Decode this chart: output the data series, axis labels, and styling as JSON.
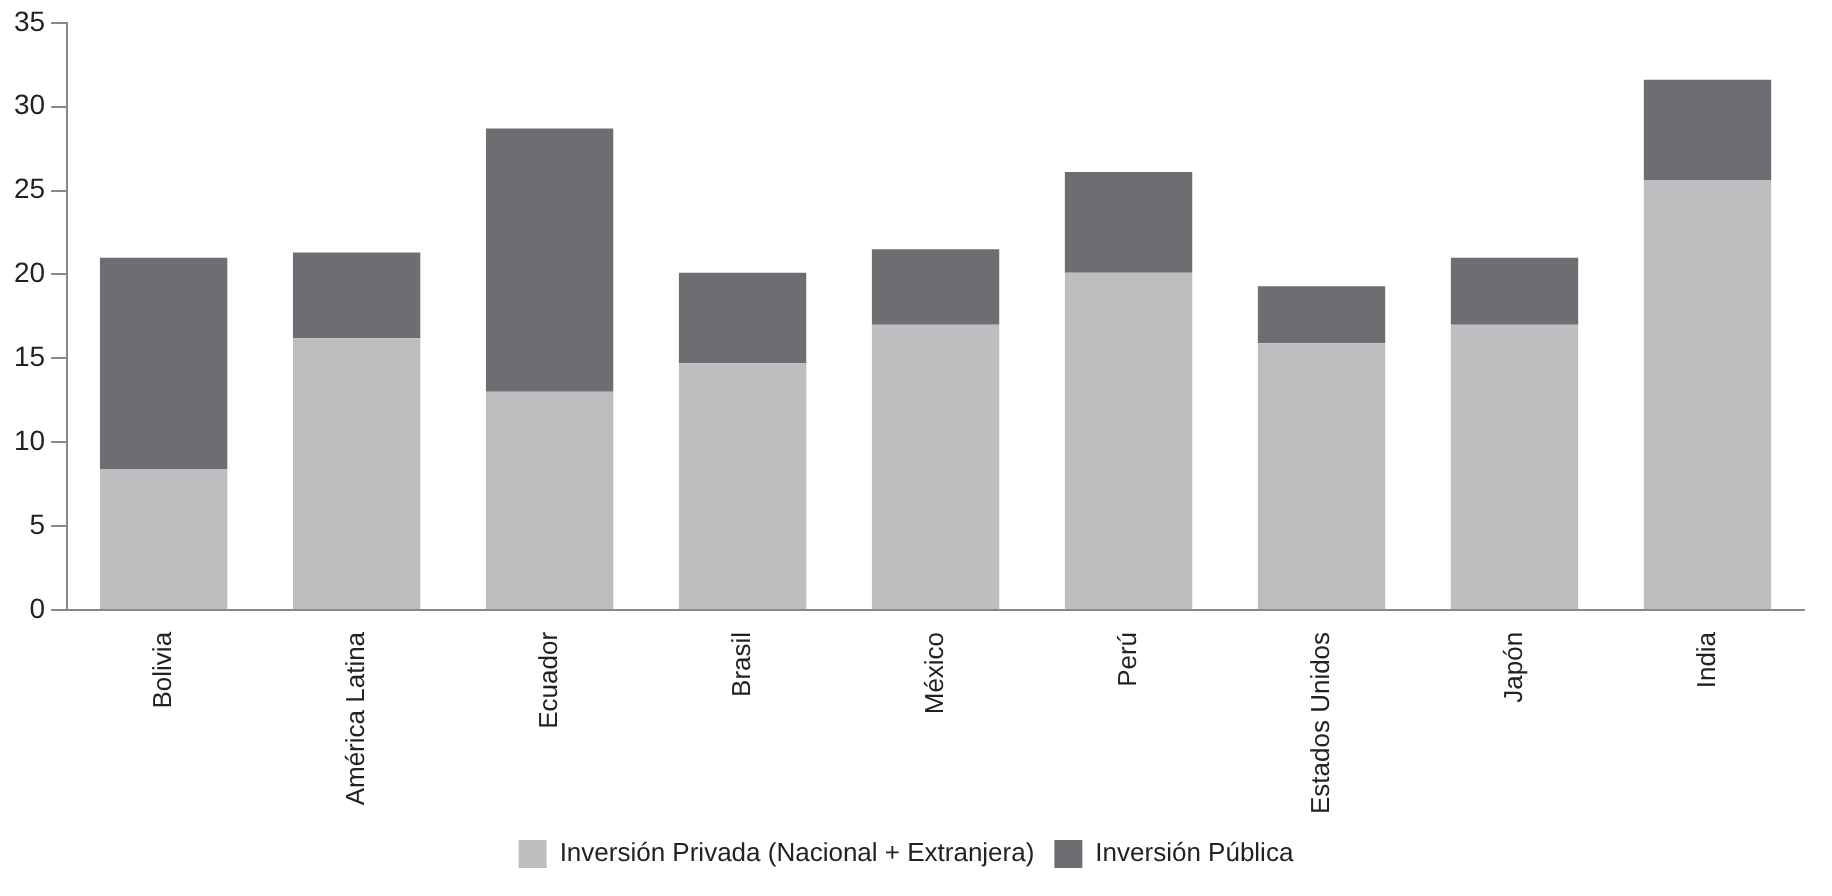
{
  "chart_data": {
    "type": "bar",
    "stacked": true,
    "categories": [
      "Bolivia",
      "América Latina",
      "Ecuador",
      "Brasil",
      "México",
      "Perú",
      "Estados Unidos",
      "Japón",
      "India"
    ],
    "series": [
      {
        "name": "Inversión Privada (Nacional + Extranjera)",
        "color": "#bdbec0",
        "values": [
          8.4,
          16.2,
          13.0,
          14.7,
          17.0,
          20.1,
          15.9,
          17.0,
          25.6
        ]
      },
      {
        "name": "Inversión Pública",
        "color": "#6d6e71",
        "values": [
          12.6,
          5.1,
          15.7,
          5.4,
          4.5,
          6.0,
          3.4,
          4.0,
          6.0
        ]
      }
    ],
    "ylim": [
      0,
      35
    ],
    "yticks": [
      0,
      5,
      10,
      15,
      20,
      25,
      30,
      35
    ],
    "grid": false,
    "legend": "bottom"
  }
}
